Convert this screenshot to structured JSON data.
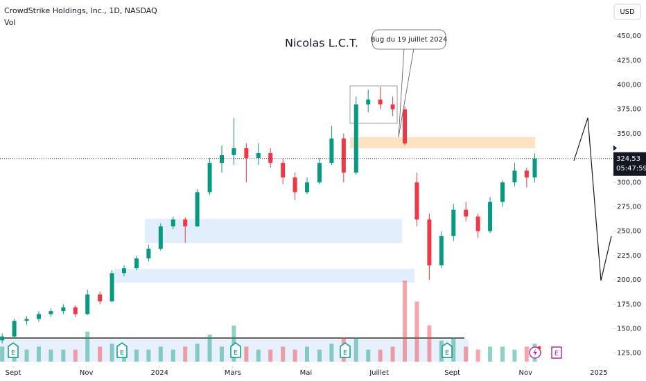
{
  "chart_data": {
    "type": "candlestick",
    "header": "CrowdStrike Holdings, Inc., 1D, NASDAQ",
    "volume_label": "Vol",
    "currency": "USD",
    "watermark": "Nicolas L.C.T.",
    "callout": "Bug du 19 juillet 2024",
    "event_label": "E",
    "up_color": "#089981",
    "down_color": "#f23645",
    "xlim": [
      -0.36,
      16.4
    ],
    "xticks": [
      {
        "value": 0,
        "label": "Sept"
      },
      {
        "value": 2,
        "label": "Nov"
      },
      {
        "value": 4,
        "label": "2024"
      },
      {
        "value": 6,
        "label": "Mars"
      },
      {
        "value": 8,
        "label": "Mai"
      },
      {
        "value": 10,
        "label": "Juillet"
      },
      {
        "value": 12,
        "label": "Sept"
      },
      {
        "value": 14,
        "label": "Nov"
      },
      {
        "value": 16,
        "label": "2025"
      }
    ],
    "ylim": [
      112,
      487
    ],
    "yticks": [
      {
        "value": 125,
        "label": "125,00"
      },
      {
        "value": 150,
        "label": "150,00"
      },
      {
        "value": 175,
        "label": "175,00"
      },
      {
        "value": 200,
        "label": "200,00"
      },
      {
        "value": 225,
        "label": "225,00"
      },
      {
        "value": 250,
        "label": "250,00"
      },
      {
        "value": 275,
        "label": "275,00"
      },
      {
        "value": 300,
        "label": "300,00"
      },
      {
        "value": 325,
        "label": "325,00"
      },
      {
        "value": 350,
        "label": "350,00"
      },
      {
        "value": 375,
        "label": "375,00"
      },
      {
        "value": 400,
        "label": "400,00"
      },
      {
        "value": 425,
        "label": "425,00"
      },
      {
        "value": 450,
        "label": "450,00"
      }
    ],
    "volume_ylim": [
      0,
      30
    ],
    "last_price": {
      "value": 324.53,
      "label": "324,53"
    },
    "countdown": "05:47:59",
    "x": [
      -0.3,
      0.03,
      0.37,
      0.7,
      1.03,
      1.37,
      1.7,
      2.03,
      2.37,
      2.7,
      3.03,
      3.37,
      3.7,
      4.03,
      4.37,
      4.7,
      5.03,
      5.37,
      5.7,
      6.03,
      6.37,
      6.7,
      7.03,
      7.37,
      7.7,
      8.03,
      8.37,
      8.7,
      9.03,
      9.37,
      9.7,
      10.03,
      10.37,
      10.7,
      11.03,
      11.37,
      11.7,
      12.03,
      12.37,
      12.7,
      13.03,
      13.37,
      13.7,
      14.03,
      14.25
    ],
    "open": [
      138,
      142,
      158,
      160,
      165,
      168,
      172,
      165,
      185,
      178,
      207,
      212,
      222,
      232,
      255,
      262,
      255,
      290,
      320,
      328,
      335,
      325,
      330,
      320,
      305,
      290,
      300,
      320,
      345,
      310,
      380,
      385,
      380,
      375,
      300,
      262,
      215,
      245,
      272,
      265,
      250,
      280,
      300,
      312,
      305
    ],
    "high": [
      145,
      160,
      163,
      168,
      171,
      175,
      174,
      190,
      188,
      210,
      215,
      225,
      236,
      258,
      265,
      264,
      293,
      325,
      338,
      366,
      340,
      340,
      335,
      325,
      310,
      305,
      325,
      358,
      350,
      388,
      395,
      398,
      388,
      378,
      310,
      268,
      250,
      278,
      280,
      268,
      285,
      302,
      320,
      315,
      330
    ],
    "low": [
      135,
      140,
      154,
      157,
      162,
      165,
      162,
      164,
      175,
      177,
      204,
      210,
      219,
      230,
      252,
      238,
      254,
      287,
      310,
      318,
      300,
      318,
      315,
      298,
      282,
      288,
      298,
      318,
      300,
      308,
      372,
      375,
      368,
      338,
      255,
      200,
      212,
      240,
      260,
      243,
      248,
      275,
      296,
      295,
      300
    ],
    "close": [
      142,
      158,
      160,
      165,
      168,
      172,
      165,
      185,
      178,
      207,
      212,
      222,
      232,
      255,
      262,
      255,
      290,
      320,
      328,
      335,
      325,
      330,
      320,
      305,
      290,
      300,
      320,
      345,
      310,
      380,
      385,
      380,
      375,
      340,
      262,
      215,
      245,
      272,
      265,
      250,
      280,
      300,
      312,
      305,
      324.53
    ],
    "volume": [
      5,
      4,
      4,
      5,
      4,
      4,
      4,
      10,
      5,
      6,
      5,
      4,
      4,
      5,
      4,
      5,
      6,
      9,
      5,
      12,
      5,
      4,
      4,
      5,
      4,
      5,
      4,
      6,
      8,
      8,
      4,
      4,
      5,
      27,
      20,
      12,
      7,
      8,
      5,
      4,
      5,
      5,
      4,
      5,
      6
    ]
  }
}
